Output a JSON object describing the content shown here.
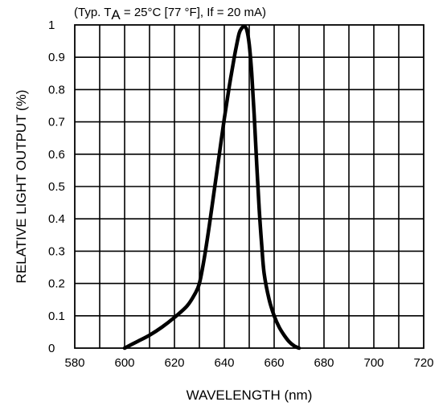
{
  "chart_data": {
    "type": "line",
    "subtitle": {
      "prefix": "(Typ. T",
      "sub": "A",
      "suffix": " = 25°C [77 °F], If = 20 mA)"
    },
    "xlabel": "WAVELENGTH (nm)",
    "ylabel": "RELATIVE  LIGHT  OUTPUT (%)",
    "xlim": [
      580,
      720
    ],
    "ylim": [
      0,
      1
    ],
    "x_ticks": [
      580,
      600,
      620,
      640,
      660,
      680,
      700,
      720
    ],
    "y_ticks": [
      0,
      0.1,
      0.2,
      0.3,
      0.4,
      0.5,
      0.6,
      0.7,
      0.8,
      0.9,
      1
    ],
    "y_tick_labels": [
      "0",
      "0.1",
      "0.2",
      "0.3",
      "0.4",
      "0.5",
      "0.6",
      "0.7",
      "0.8",
      "0.9",
      "1"
    ],
    "grid": true,
    "x_minor_divisions": 2,
    "series": [
      {
        "color": "#000000",
        "x": [
          600,
          605,
          610,
          615,
          620,
          625,
          628,
          630,
          632,
          634,
          636,
          638,
          640,
          642,
          644,
          645,
          646,
          647,
          648,
          649,
          650,
          651,
          652,
          653,
          654,
          655,
          656,
          658,
          660,
          662,
          664,
          666,
          668,
          670
        ],
        "y": [
          0,
          0.02,
          0.04,
          0.065,
          0.095,
          0.13,
          0.165,
          0.2,
          0.28,
          0.38,
          0.49,
          0.6,
          0.71,
          0.81,
          0.9,
          0.94,
          0.975,
          0.99,
          0.995,
          0.985,
          0.94,
          0.85,
          0.72,
          0.57,
          0.43,
          0.32,
          0.23,
          0.15,
          0.1,
          0.065,
          0.04,
          0.02,
          0.007,
          0
        ]
      }
    ]
  }
}
